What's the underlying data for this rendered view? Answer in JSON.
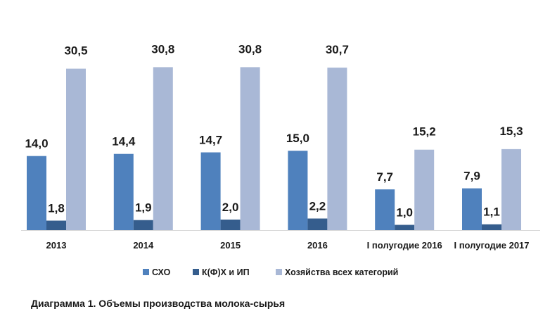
{
  "caption": "Диаграмма 1. Объемы производства молока-сырья",
  "chart_data": {
    "type": "bar",
    "title": "",
    "xlabel": "",
    "ylabel": "",
    "ylim": [
      0,
      31
    ],
    "grid": false,
    "legend_position": "bottom",
    "categories": [
      "2013",
      "2014",
      "2015",
      "2016",
      "I полугодие 2016",
      "I полугодие 2017"
    ],
    "series": [
      {
        "name": "СХО",
        "color": "#4f81bd",
        "values": [
          14.0,
          14.4,
          14.7,
          15.0,
          7.7,
          7.9
        ],
        "labels": [
          "14,0",
          "14,4",
          "14,7",
          "15,0",
          "7,7",
          "7,9"
        ]
      },
      {
        "name": "К(Ф)Х и ИП",
        "color": "#355d8d",
        "values": [
          1.8,
          1.9,
          2.0,
          2.2,
          1.0,
          1.1
        ],
        "labels": [
          "1,8",
          "1,9",
          "2,0",
          "2,2",
          "1,0",
          "1,1"
        ]
      },
      {
        "name": "Хозяйства всех категорий",
        "color": "#a9b8d6",
        "values": [
          30.5,
          30.8,
          30.8,
          30.7,
          15.2,
          15.3
        ],
        "labels": [
          "30,5",
          "30,8",
          "30,8",
          "30,7",
          "15,2",
          "15,3"
        ]
      }
    ]
  }
}
